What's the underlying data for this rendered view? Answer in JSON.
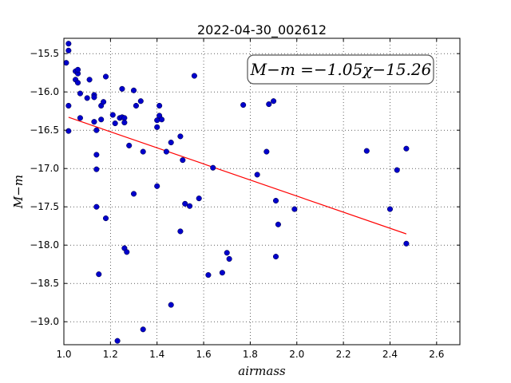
{
  "chart_data": {
    "type": "scatter",
    "title": "2022-04-30_002612",
    "xlabel": "airmass",
    "ylabel": "M−m",
    "xlim": [
      1.0,
      2.7
    ],
    "ylim": [
      -15.3,
      -19.3
    ],
    "y_inverted": true,
    "grid": true,
    "x_ticks": [
      "1.0",
      "1.2",
      "1.4",
      "1.6",
      "1.8",
      "2.0",
      "2.2",
      "2.4",
      "2.6"
    ],
    "x_tick_values": [
      1.0,
      1.2,
      1.4,
      1.6,
      1.8,
      2.0,
      2.2,
      2.4,
      2.6
    ],
    "y_ticks": [
      "−15.5",
      "−16.0",
      "−16.5",
      "−17.0",
      "−17.5",
      "−18.0",
      "−18.5",
      "−19.0"
    ],
    "y_tick_values": [
      -15.5,
      -16.0,
      -16.5,
      -17.0,
      -17.5,
      -18.0,
      -18.5,
      -19.0
    ],
    "annotation": "M−m =−1.05χ−15.26",
    "fit_line": {
      "slope": -1.05,
      "intercept": -15.26,
      "x_range": [
        1.02,
        2.47
      ],
      "color": "#ff0000"
    },
    "point_color": "#0000cc",
    "points": [
      [
        1.02,
        -15.37
      ],
      [
        1.02,
        -15.46
      ],
      [
        1.01,
        -15.62
      ],
      [
        1.05,
        -15.73
      ],
      [
        1.06,
        -15.76
      ],
      [
        1.06,
        -15.71
      ],
      [
        1.05,
        -15.84
      ],
      [
        1.06,
        -15.88
      ],
      [
        1.07,
        -16.02
      ],
      [
        1.1,
        -16.08
      ],
      [
        1.11,
        -15.84
      ],
      [
        1.13,
        -16.04
      ],
      [
        1.13,
        -16.07
      ],
      [
        1.02,
        -16.18
      ],
      [
        1.02,
        -16.51
      ],
      [
        1.07,
        -16.34
      ],
      [
        1.13,
        -16.39
      ],
      [
        1.14,
        -16.5
      ],
      [
        1.16,
        -16.18
      ],
      [
        1.17,
        -16.13
      ],
      [
        1.18,
        -15.8
      ],
      [
        1.16,
        -16.36
      ],
      [
        1.14,
        -16.82
      ],
      [
        1.14,
        -17.01
      ],
      [
        1.14,
        -17.5
      ],
      [
        1.18,
        -17.65
      ],
      [
        1.15,
        -18.38
      ],
      [
        1.21,
        -16.3
      ],
      [
        1.22,
        -16.41
      ],
      [
        1.24,
        -16.34
      ],
      [
        1.25,
        -16.33
      ],
      [
        1.26,
        -16.34
      ],
      [
        1.26,
        -16.4
      ],
      [
        1.25,
        -15.96
      ],
      [
        1.3,
        -15.98
      ],
      [
        1.31,
        -16.18
      ],
      [
        1.33,
        -16.12
      ],
      [
        1.28,
        -16.7
      ],
      [
        1.34,
        -16.78
      ],
      [
        1.3,
        -17.33
      ],
      [
        1.26,
        -18.04
      ],
      [
        1.27,
        -18.09
      ],
      [
        1.23,
        -19.25
      ],
      [
        1.34,
        -19.1
      ],
      [
        1.4,
        -16.37
      ],
      [
        1.41,
        -16.31
      ],
      [
        1.42,
        -16.36
      ],
      [
        1.41,
        -16.18
      ],
      [
        1.4,
        -16.46
      ],
      [
        1.44,
        -16.78
      ],
      [
        1.46,
        -16.66
      ],
      [
        1.4,
        -17.23
      ],
      [
        1.5,
        -16.58
      ],
      [
        1.51,
        -16.89
      ],
      [
        1.52,
        -17.46
      ],
      [
        1.54,
        -17.49
      ],
      [
        1.58,
        -17.39
      ],
      [
        1.5,
        -17.82
      ],
      [
        1.46,
        -18.78
      ],
      [
        1.56,
        -15.79
      ],
      [
        1.62,
        -18.39
      ],
      [
        1.64,
        -16.99
      ],
      [
        1.68,
        -18.36
      ],
      [
        1.7,
        -18.1
      ],
      [
        1.71,
        -18.18
      ],
      [
        1.77,
        -16.17
      ],
      [
        1.83,
        -17.08
      ],
      [
        1.87,
        -16.78
      ],
      [
        1.88,
        -16.16
      ],
      [
        1.9,
        -16.12
      ],
      [
        1.91,
        -17.42
      ],
      [
        1.92,
        -17.73
      ],
      [
        1.91,
        -18.15
      ],
      [
        1.99,
        -17.53
      ],
      [
        2.3,
        -16.77
      ],
      [
        2.4,
        -17.53
      ],
      [
        2.43,
        -17.02
      ],
      [
        2.47,
        -16.74
      ],
      [
        2.47,
        -17.98
      ]
    ]
  }
}
